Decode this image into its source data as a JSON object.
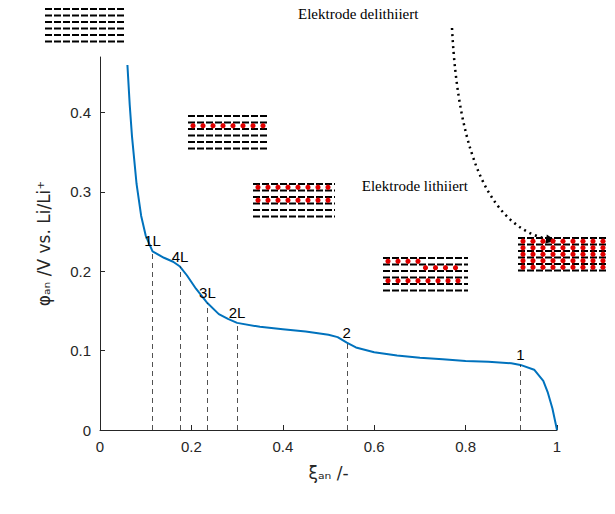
{
  "chart_data": {
    "type": "line",
    "x": [
      0.06,
      0.065,
      0.07,
      0.075,
      0.08,
      0.09,
      0.1,
      0.115,
      0.14,
      0.16,
      0.175,
      0.19,
      0.21,
      0.235,
      0.26,
      0.28,
      0.3,
      0.35,
      0.4,
      0.45,
      0.5,
      0.52,
      0.54,
      0.56,
      0.6,
      0.65,
      0.7,
      0.75,
      0.8,
      0.85,
      0.9,
      0.92,
      0.95,
      0.97,
      0.98,
      0.99,
      1.0
    ],
    "values": [
      0.46,
      0.41,
      0.37,
      0.34,
      0.31,
      0.27,
      0.245,
      0.225,
      0.217,
      0.212,
      0.206,
      0.195,
      0.178,
      0.16,
      0.146,
      0.14,
      0.135,
      0.13,
      0.127,
      0.124,
      0.12,
      0.117,
      0.11,
      0.104,
      0.098,
      0.094,
      0.091,
      0.089,
      0.087,
      0.086,
      0.084,
      0.082,
      0.076,
      0.062,
      0.047,
      0.027,
      0.0
    ],
    "color": "#0072bd",
    "xlabel": "ξₐₙ /-",
    "ylabel": "φₐₙ /V vs. Li/Li⁺",
    "xlim": [
      0,
      1
    ],
    "ylim": [
      0,
      0.47
    ],
    "xticks": [
      0,
      0.2,
      0.4,
      0.6,
      0.8,
      1
    ],
    "yticks": [
      0,
      0.1,
      0.2,
      0.3,
      0.4
    ],
    "grid": false,
    "markers": [
      {
        "label": "1L",
        "x": 0.115,
        "y": 0.225
      },
      {
        "label": "4L",
        "x": 0.175,
        "y": 0.206
      },
      {
        "label": "3L",
        "x": 0.235,
        "y": 0.16
      },
      {
        "label": "2L",
        "x": 0.3,
        "y": 0.135
      },
      {
        "label": "2",
        "x": 0.54,
        "y": 0.11
      },
      {
        "label": "1",
        "x": 0.92,
        "y": 0.082
      }
    ],
    "annotations": [
      "Elektrode delithiiert",
      "Elektrode lithiiert"
    ]
  }
}
